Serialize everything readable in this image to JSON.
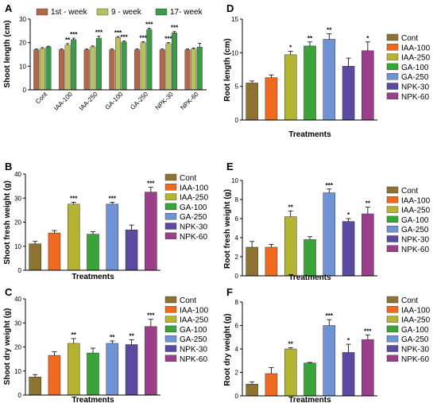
{
  "colors": {
    "Cont": "#8c7332",
    "IAA-100": "#ef6a1f",
    "IAA-250": "#b4b432",
    "GA-100": "#3aa43a",
    "GA-250": "#6f93d4",
    "NPK-30": "#5a4aa0",
    "NPK-60": "#9c3f8a",
    "week1": "#b5664a",
    "week9": "#b8c060",
    "week17": "#3d9a4a"
  },
  "treatments": [
    "Cont",
    "IAA-100",
    "IAA-250",
    "GA-100",
    "GA-250",
    "NPK-30",
    "NPK-60"
  ],
  "legend": {
    "items": [
      "Cont",
      "IAA-100",
      "IAA-250",
      "GA-100",
      "GA-250",
      "NPK-30",
      "NPK-60"
    ]
  },
  "chart_data": [
    {
      "panel": "A",
      "type": "bar",
      "ylabel": "Shoot length (cm)",
      "xlabel": "",
      "ylim": [
        0,
        30
      ],
      "yticks": [
        0,
        10,
        20,
        30
      ],
      "categories": [
        "Cont",
        "IAA-100",
        "IAA-250",
        "GA-100",
        "GA-250",
        "NPK-30",
        "NPK-60"
      ],
      "series": [
        {
          "name": "1st - week",
          "color": "#b5664a",
          "values": [
            17,
            17,
            17,
            17,
            17,
            17,
            17
          ],
          "err": [
            0.3,
            0.3,
            0.3,
            0.3,
            0.3,
            0.3,
            0.3
          ],
          "sig": [
            "",
            "",
            "",
            "",
            "",
            "",
            ""
          ]
        },
        {
          "name": "9 - week",
          "color": "#b8c060",
          "values": [
            17.5,
            19,
            18.2,
            22.2,
            20,
            19.6,
            17.3
          ],
          "err": [
            0.4,
            0.6,
            0.4,
            0.4,
            0.4,
            0.4,
            0.4
          ],
          "sig": [
            "",
            "**",
            "",
            "***",
            "***",
            "***",
            ""
          ]
        },
        {
          "name": "17- week",
          "color": "#3d9a4a",
          "values": [
            18.2,
            21.3,
            21.9,
            20.3,
            25.6,
            24.2,
            18.1
          ],
          "err": [
            0.3,
            0.6,
            0.8,
            0.4,
            0.5,
            0.5,
            1.6
          ],
          "sig": [
            "",
            "***",
            "***",
            "***",
            "***",
            "***",
            ""
          ]
        }
      ]
    },
    {
      "panel": "B",
      "type": "bar",
      "ylabel": "Shoot fresh weight (g)",
      "xlabel": "Treatments",
      "ylim": [
        0,
        40
      ],
      "yticks": [
        0,
        10,
        20,
        30,
        40
      ],
      "categories": [
        "Cont",
        "IAA-100",
        "IAA-250",
        "GA-100",
        "GA-250",
        "NPK-30",
        "NPK-60"
      ],
      "values": [
        11,
        15.5,
        27.5,
        15,
        27.5,
        16.8,
        32.5
      ],
      "err": [
        1,
        1,
        0.8,
        1,
        0.8,
        2,
        2
      ],
      "sig": [
        "",
        "",
        "***",
        "",
        "***",
        "",
        "***"
      ]
    },
    {
      "panel": "C",
      "type": "bar",
      "ylabel": "Shoot dry weight (g)",
      "xlabel": "Treatments",
      "ylim": [
        0,
        40
      ],
      "yticks": [
        0,
        10,
        20,
        30,
        40
      ],
      "categories": [
        "Cont",
        "IAA-100",
        "IAA-250",
        "GA-100",
        "GA-250",
        "NPK-30",
        "NPK-60"
      ],
      "values": [
        7.5,
        16.5,
        21.5,
        17.5,
        21.5,
        21,
        28.5
      ],
      "err": [
        1,
        1.5,
        2,
        2,
        1,
        2,
        3
      ],
      "sig": [
        "",
        "",
        "**",
        "",
        "**",
        "**",
        "***"
      ]
    },
    {
      "panel": "D",
      "type": "bar",
      "ylabel": "Root length (cm)",
      "xlabel": "Treatments",
      "ylim": [
        0,
        15
      ],
      "yticks": [
        0,
        5,
        10,
        15
      ],
      "categories": [
        "Cont",
        "IAA-100",
        "IAA-250",
        "GA-100",
        "GA-250",
        "NPK-30",
        "NPK-60"
      ],
      "values": [
        5.5,
        6.3,
        9.7,
        11,
        12,
        8,
        10.3
      ],
      "err": [
        0.3,
        0.4,
        0.5,
        0.6,
        0.8,
        1.2,
        1.3
      ],
      "sig": [
        "",
        "",
        "*",
        "**",
        "**",
        "",
        "*"
      ]
    },
    {
      "panel": "E",
      "type": "bar",
      "ylabel": "Root fresh weight (g)",
      "xlabel": "Treatments",
      "ylim": [
        0,
        10
      ],
      "yticks": [
        0,
        2,
        4,
        6,
        8,
        10
      ],
      "categories": [
        "Cont",
        "IAA-100",
        "IAA-250",
        "GA-100",
        "GA-250",
        "NPK-30",
        "NPK-60"
      ],
      "values": [
        3,
        3,
        6.2,
        3.8,
        8.7,
        5.7,
        6.5
      ],
      "err": [
        0.6,
        0.3,
        0.6,
        0.3,
        0.4,
        0.3,
        0.7
      ],
      "sig": [
        "",
        "",
        "**",
        "",
        "***",
        "*",
        "**"
      ]
    },
    {
      "panel": "F",
      "type": "bar",
      "ylabel": "Root dry weight (g)",
      "xlabel": "Treatments",
      "ylim": [
        0,
        8
      ],
      "yticks": [
        0,
        2,
        4,
        6,
        8
      ],
      "categories": [
        "Cont",
        "IAA-100",
        "IAA-250",
        "GA-100",
        "GA-250",
        "NPK-30",
        "NPK-60"
      ],
      "values": [
        1,
        1.9,
        4,
        2.8,
        6,
        3.7,
        4.8
      ],
      "err": [
        0.2,
        0.5,
        0.1,
        0.05,
        0.5,
        0.7,
        0.4
      ],
      "sig": [
        "",
        "",
        "**",
        "",
        "***",
        "*",
        "***"
      ]
    }
  ]
}
